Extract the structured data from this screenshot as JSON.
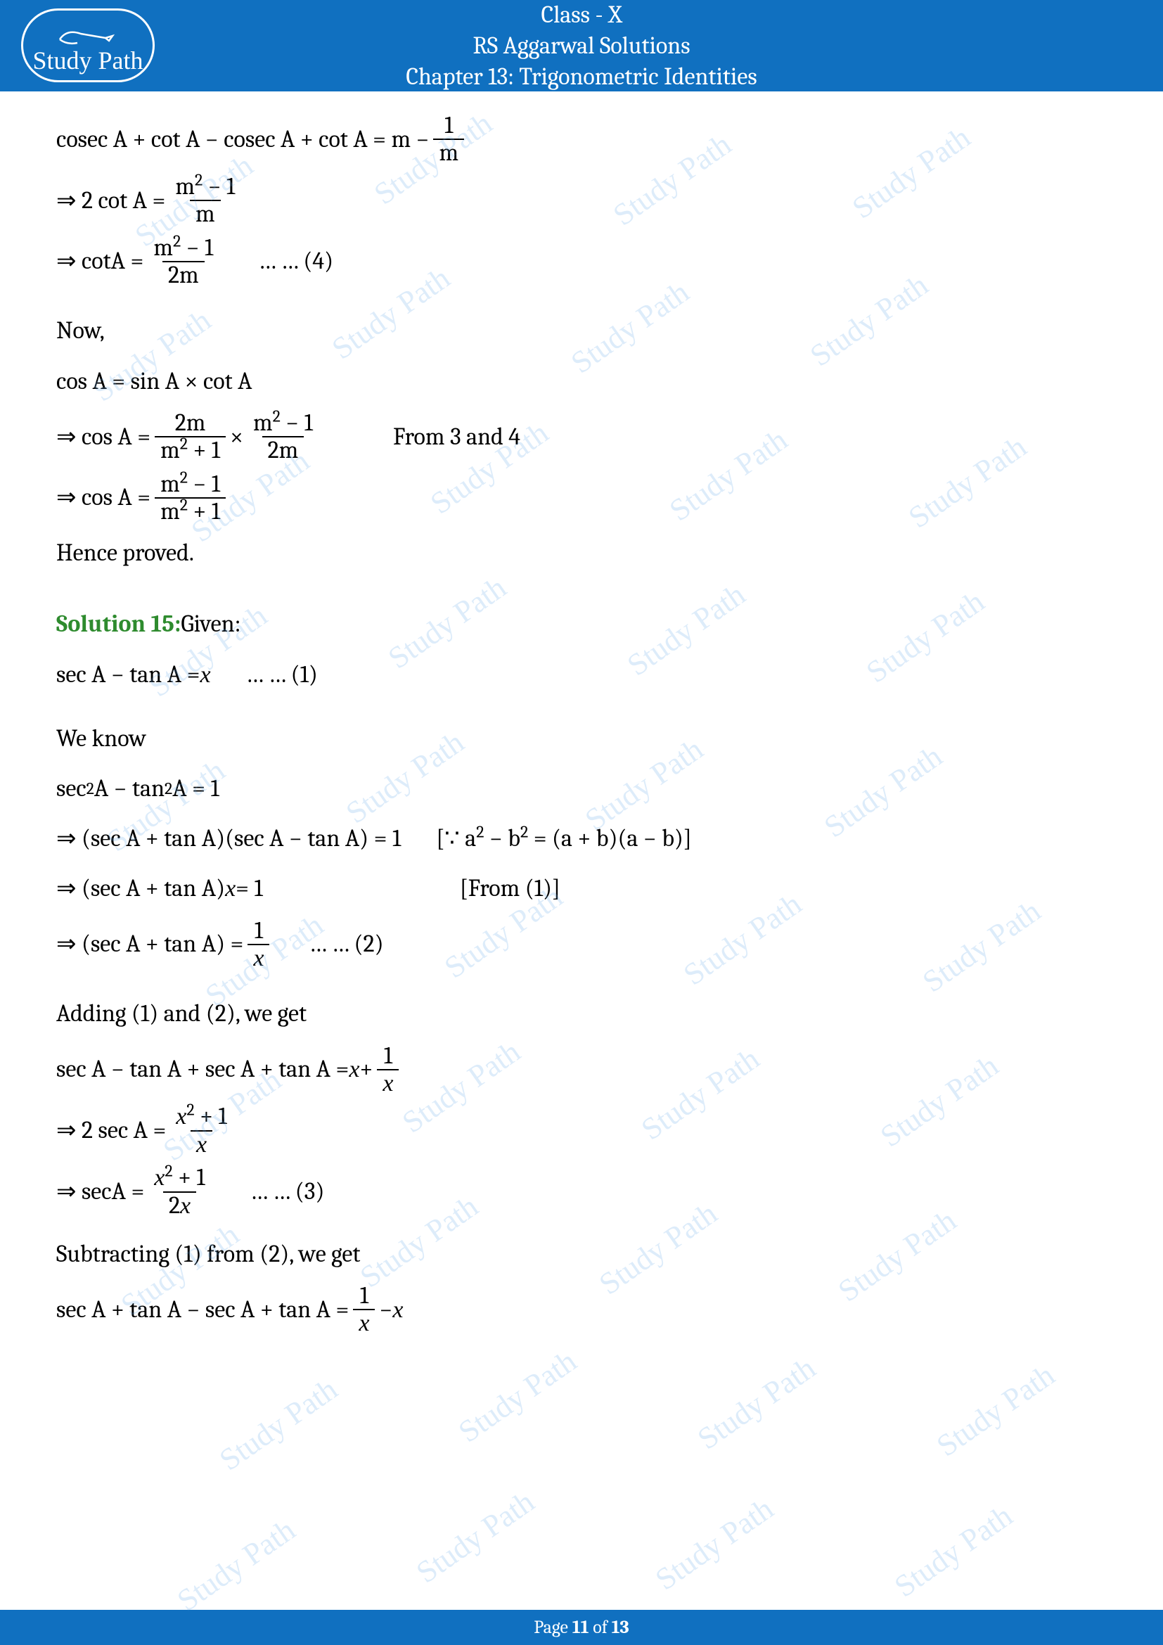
{
  "header": {
    "line1": "Class - X",
    "line2": "RS Aggarwal Solutions",
    "line3": "Chapter 13: Trigonometric Identities"
  },
  "logo": {
    "text": "Study Path"
  },
  "content": {
    "l1_left": "cosec A + cot A − cosec A + cot A = m −",
    "l1_num": "1",
    "l1_den": "m",
    "l2_pre": "⇒ 2 cot A =",
    "l2_num": "m",
    "l2_sup": "2",
    "l2_num2": " − 1",
    "l2_den": "m",
    "l3_pre": "⇒ cotA =",
    "l3_num": "m",
    "l3_sup": "2",
    "l3_num2": " − 1",
    "l3_den": "2m",
    "l3_tag": "… … (4)",
    "now": "Now,",
    "l4": "cos A = sin A × cot A",
    "l5_pre": "⇒ cos A =",
    "l5_num1": "2m",
    "l5_den1a": "m",
    "l5_den1sup": "2",
    "l5_den1b": " + 1",
    "l5_mul": " × ",
    "l5_num2a": "m",
    "l5_num2sup": "2",
    "l5_num2b": " − 1",
    "l5_den2": "2m",
    "l5_tag": "From 3 and 4",
    "l6_pre": "⇒ cos A =",
    "l6_numa": "m",
    "l6_numsup": "2",
    "l6_numb": " − 1",
    "l6_dena": "m",
    "l6_densup": "2",
    "l6_denb": " + 1",
    "hence": "Hence proved.",
    "sol15": "Solution 15:",
    "given": " Given:",
    "l7": "sec A − tan A = ",
    "l7_x": "x",
    "l7_tag": "… … (1)",
    "weknow": "We know",
    "l8a": "sec",
    "l8sup": "2",
    "l8b": " A − tan",
    "l8sup2": "2",
    "l8c": " A = 1",
    "l9": "⇒ (sec A + tan A)(sec A − tan A) = 1",
    "l9_tag_a": "[∵ a",
    "l9_tag_sup": "2",
    "l9_tag_b": " − b",
    "l9_tag_sup2": "2",
    "l9_tag_c": " = (a + b)(a − b)]",
    "l10": "⇒ (sec A + tan A)",
    "l10_x": "x",
    "l10_eq": " = 1",
    "l10_tag": "[From (1)]",
    "l11_pre": "⇒ (sec A + tan A) =",
    "l11_num": "1",
    "l11_den": "x",
    "l11_tag": "… … (2)",
    "adding": "Adding (1) and (2), we get",
    "l12_pre": " sec A − tan A +  sec A + tan A = ",
    "l12_x": "x",
    "l12_plus": " + ",
    "l12_num": "1",
    "l12_den": "x",
    "l13_pre": "⇒ 2 sec A =",
    "l13_numa": "x",
    "l13_numsup": "2",
    "l13_numb": " + 1",
    "l13_den": "x",
    "l14_pre": "⇒ secA =",
    "l14_numa": "x",
    "l14_numsup": "2",
    "l14_numb": " + 1",
    "l14_den": "2x",
    "l14_tag": "… … (3)",
    "subtract": "Subtracting (1) from (2), we get",
    "l15_pre": " sec A + tan A − sec A + tan A =",
    "l15_num": "1",
    "l15_den": "x",
    "l15_post": " − ",
    "l15_x": "x"
  },
  "footer": {
    "pre": "Page ",
    "cur": "11",
    "mid": " of ",
    "total": "13"
  },
  "watermark": {
    "text": "Study Path"
  },
  "colors": {
    "brand": "#1070c0",
    "solution": "#2e8b2e",
    "wm": "rgba(100,170,230,0.22)"
  }
}
